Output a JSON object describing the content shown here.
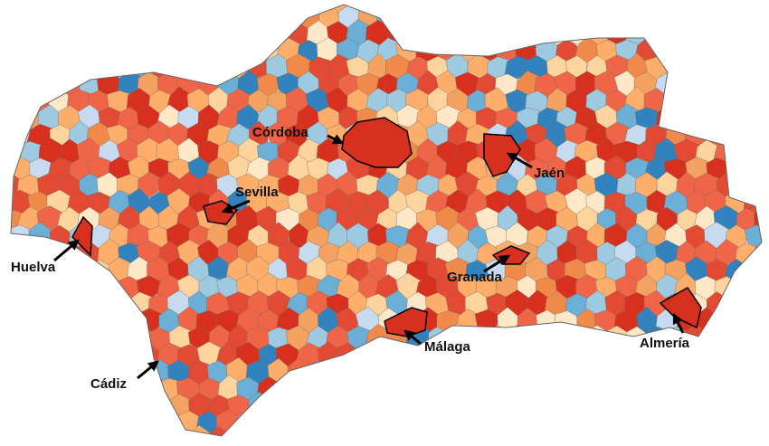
{
  "map": {
    "cities": [
      {
        "name": "Córdoba"
      },
      {
        "name": "Sevilla"
      },
      {
        "name": "Jaén"
      },
      {
        "name": "Huelva"
      },
      {
        "name": "Granada"
      },
      {
        "name": "Málaga"
      },
      {
        "name": "Cádiz"
      },
      {
        "name": "Almería"
      }
    ]
  }
}
